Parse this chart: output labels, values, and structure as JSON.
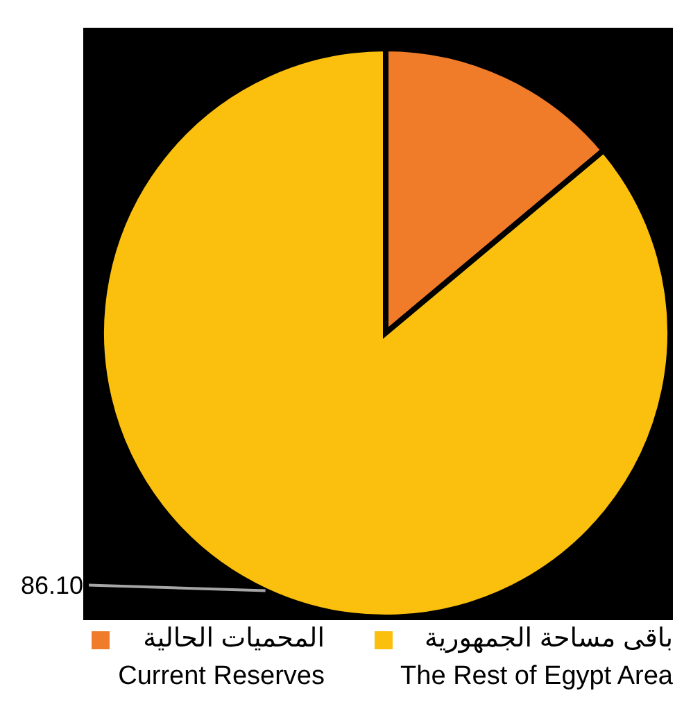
{
  "chart_data": {
    "type": "pie",
    "categories": [
      "المحميات الحالية\nCurrent Reserves",
      "باقى مساحة الجمهورية\nThe Rest of Egypt Area"
    ],
    "values": [
      13.9,
      86.1
    ],
    "colors": [
      "#f07c2a",
      "#fbbf0e"
    ],
    "value_labels": [
      null,
      "86.10"
    ],
    "legend": "bottom"
  }
}
